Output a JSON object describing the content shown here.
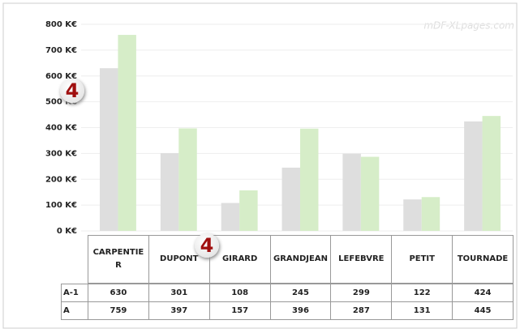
{
  "chart_data": {
    "type": "bar",
    "categories": [
      "CARPENTIER",
      "DUPONT",
      "GIRARD",
      "GRANDJEAN",
      "LEFEBVRE",
      "PETIT",
      "TOURNADE"
    ],
    "series": [
      {
        "name": "A-1",
        "color": "#dedede",
        "values": [
          630,
          301,
          108,
          245,
          299,
          122,
          424
        ]
      },
      {
        "name": "A",
        "color": "#d6edc8",
        "values": [
          759,
          397,
          157,
          396,
          287,
          131,
          445
        ]
      }
    ],
    "ylim": [
      0,
      800
    ],
    "yticks": [
      {
        "value": 0,
        "label": "0 K€"
      },
      {
        "value": 100,
        "label": "100 K€"
      },
      {
        "value": 200,
        "label": "200 K€"
      },
      {
        "value": 300,
        "label": "300 K€"
      },
      {
        "value": 400,
        "label": "400 K€"
      },
      {
        "value": 500,
        "label": "500 K€"
      },
      {
        "value": 600,
        "label": "600 K€"
      },
      {
        "value": 700,
        "label": "700 K€"
      },
      {
        "value": 800,
        "label": "800 K€"
      }
    ],
    "grid": true,
    "annotations": [
      "4",
      "4"
    ],
    "watermark": "mDF-XLpages.com"
  }
}
